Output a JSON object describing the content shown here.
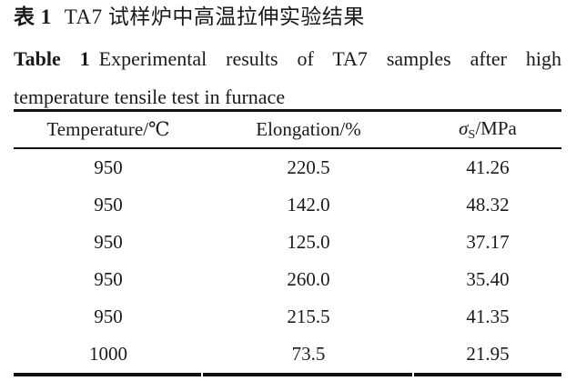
{
  "page": {
    "background": "#ffffff",
    "text_color": "#1a1a1a",
    "rule_color": "#111111"
  },
  "caption_zh": {
    "label": "表 1",
    "text": "TA7 试样炉中高温拉伸实验结果"
  },
  "caption_en": {
    "label": "Table 1",
    "line1": "Experimental results of TA7 samples after high",
    "line2": "temperature tensile test in furnace"
  },
  "table": {
    "columns": [
      {
        "label": "Temperature/℃"
      },
      {
        "label": "Elongation/%"
      },
      {
        "sigma": "σ",
        "sub": "S",
        "rest": "/MPa"
      }
    ],
    "rows": [
      [
        "950",
        "220.5",
        "41.26"
      ],
      [
        "950",
        "142.0",
        "48.32"
      ],
      [
        "950",
        "125.0",
        "37.17"
      ],
      [
        "950",
        "260.0",
        "35.40"
      ],
      [
        "950",
        "215.5",
        "41.35"
      ],
      [
        "1000",
        "73.5",
        "21.95"
      ]
    ]
  },
  "chart_data": {
    "type": "table",
    "title_zh": "表 1 TA7 试样炉中高温拉伸实验结果",
    "title_en": "Table 1 Experimental results of TA7 samples after high temperature tensile test in furnace",
    "columns": [
      "Temperature/℃",
      "Elongation/%",
      "σS/MPa"
    ],
    "rows": [
      [
        950,
        220.5,
        41.26
      ],
      [
        950,
        142.0,
        48.32
      ],
      [
        950,
        125.0,
        37.17
      ],
      [
        950,
        260.0,
        35.4
      ],
      [
        950,
        215.5,
        41.35
      ],
      [
        1000,
        73.5,
        21.95
      ]
    ]
  }
}
